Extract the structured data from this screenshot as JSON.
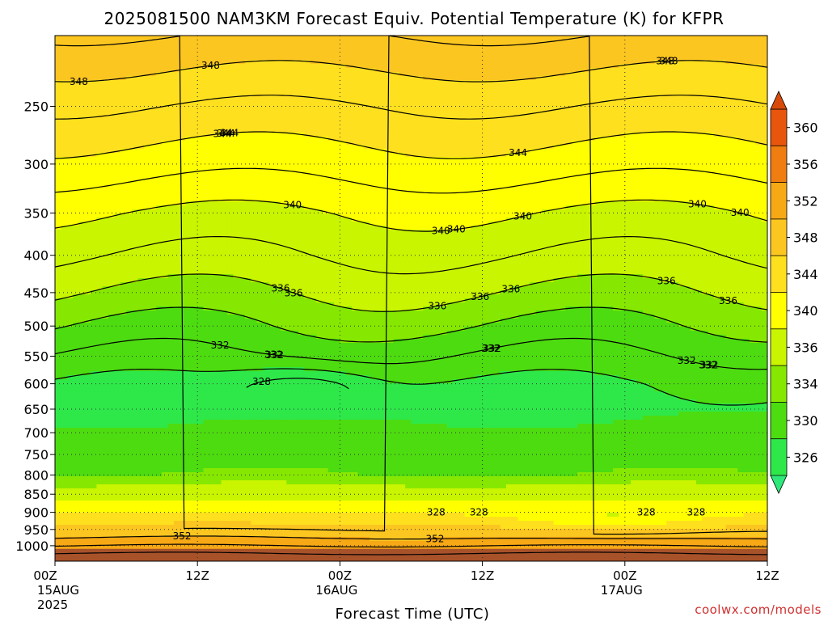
{
  "chart_data": {
    "type": "heatmap",
    "title": "2025081500 NAM3KM Forecast Equiv. Potential Temperature (K) for KFPR",
    "xlabel": "Forecast Time (UTC)",
    "ylabel": "",
    "y_scale": "log",
    "y_inverted": true,
    "ylim": [
      1050,
      200
    ],
    "y_ticks": [
      "250",
      "300",
      "350",
      "400",
      "450",
      "500",
      "550",
      "600",
      "650",
      "700",
      "750",
      "800",
      "850",
      "900",
      "950",
      "1000"
    ],
    "x_ticks": [
      {
        "label": "00Z",
        "sub": [
          "15AUG",
          "2025"
        ]
      },
      {
        "label": "12Z",
        "sub": []
      },
      {
        "label": "00Z",
        "sub": [
          "16AUG"
        ]
      },
      {
        "label": "12Z",
        "sub": []
      },
      {
        "label": "00Z",
        "sub": [
          "17AUG"
        ]
      },
      {
        "label": "12Z",
        "sub": []
      }
    ],
    "xlim_hours": [
      0,
      60
    ],
    "grid": true,
    "colorbar": {
      "position": "right",
      "ticks": [
        "360",
        "356",
        "352",
        "348",
        "344",
        "340",
        "336",
        "334",
        "330",
        "326"
      ],
      "colors": [
        "#e8560d",
        "#f07d10",
        "#f7a815",
        "#fcc620",
        "#ffe01e",
        "#ffff00",
        "#c9f500",
        "#86e800",
        "#4ddc10",
        "#2ee84a"
      ]
    },
    "contour_labels": [
      "348",
      "344",
      "340",
      "340",
      "340",
      "336",
      "336",
      "336",
      "336",
      "332",
      "332",
      "332",
      "328",
      "328",
      "328",
      "332",
      "332",
      "332",
      "340",
      "336",
      "344",
      "348",
      "352",
      "344",
      "348",
      "340",
      "344",
      "332",
      "328",
      "348",
      "336",
      "340",
      "352",
      "328",
      "336",
      "332"
    ],
    "profile": [
      {
        "p": 200,
        "v": 350
      },
      {
        "p": 250,
        "v": 346
      },
      {
        "p": 300,
        "v": 343
      },
      {
        "p": 350,
        "v": 340
      },
      {
        "p": 400,
        "v": 338
      },
      {
        "p": 450,
        "v": 336
      },
      {
        "p": 500,
        "v": 334
      },
      {
        "p": 600,
        "v": 330
      },
      {
        "p": 650,
        "v": 329
      },
      {
        "p": 700,
        "v": 331
      },
      {
        "p": 800,
        "v": 334
      },
      {
        "p": 850,
        "v": 338
      },
      {
        "p": 900,
        "v": 344
      },
      {
        "p": 950,
        "v": 350
      },
      {
        "p": 1000,
        "v": 354
      },
      {
        "p": 1050,
        "v": 358
      }
    ]
  },
  "footer": {
    "watermark": "coolwx.com/models"
  }
}
